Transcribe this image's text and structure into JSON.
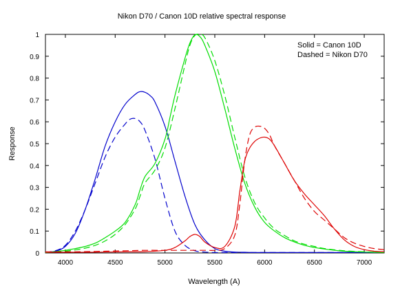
{
  "chart_data": {
    "type": "line",
    "title": "Nikon D70 / Canon 10D relative spectral response",
    "xlabel": "Wavelength (A)",
    "ylabel": "Response",
    "xlim": [
      3800,
      7200
    ],
    "ylim": [
      0,
      1
    ],
    "xticks": [
      4000,
      4500,
      5000,
      5500,
      6000,
      6500,
      7000
    ],
    "yticks": [
      0,
      0.1,
      0.2,
      0.3,
      0.4,
      0.5,
      0.6,
      0.7,
      0.8,
      0.9,
      1
    ],
    "grid": false,
    "legend_text": [
      "Solid = Canon 10D",
      "Dashed = Nikon D70"
    ],
    "legend_position": "top-right",
    "series": [
      {
        "camera": "Canon 10D",
        "channel": "blue",
        "color": "#0000cc",
        "style": "solid",
        "x": [
          3800,
          3900,
          4000,
          4100,
          4200,
          4300,
          4400,
          4500,
          4600,
          4700,
          4750,
          4800,
          4850,
          4900,
          5000,
          5100,
          5200,
          5300,
          5400,
          5500,
          5600,
          5700,
          5800,
          5900,
          6000,
          6100,
          6200,
          6400,
          6600,
          6800,
          7000,
          7200
        ],
        "y": [
          0.003,
          0.008,
          0.03,
          0.09,
          0.2,
          0.34,
          0.49,
          0.6,
          0.68,
          0.725,
          0.738,
          0.735,
          0.72,
          0.69,
          0.58,
          0.42,
          0.26,
          0.13,
          0.06,
          0.02,
          0.008,
          0.004,
          0.003,
          0.002,
          0.002,
          0.002,
          0.002,
          0.002,
          0.002,
          0.002,
          0.002,
          0.002
        ]
      },
      {
        "camera": "Nikon D70",
        "channel": "blue",
        "color": "#0000cc",
        "style": "dashed",
        "x": [
          3800,
          3900,
          4000,
          4100,
          4200,
          4300,
          4400,
          4500,
          4600,
          4650,
          4700,
          4750,
          4800,
          4900,
          5000,
          5100,
          5200,
          5300,
          5400,
          5500,
          5600,
          5800,
          6000,
          6200,
          6400,
          6600,
          6800,
          7000,
          7200
        ],
        "y": [
          0.003,
          0.01,
          0.035,
          0.1,
          0.2,
          0.32,
          0.44,
          0.53,
          0.59,
          0.612,
          0.615,
          0.6,
          0.56,
          0.43,
          0.25,
          0.1,
          0.035,
          0.01,
          0.004,
          0.002,
          0.002,
          0.002,
          0.002,
          0.002,
          0.002,
          0.002,
          0.002,
          0.002,
          0.002
        ]
      },
      {
        "camera": "Canon 10D",
        "channel": "green",
        "color": "#00dd00",
        "style": "solid",
        "x": [
          3800,
          3900,
          4000,
          4100,
          4200,
          4300,
          4400,
          4500,
          4600,
          4700,
          4750,
          4800,
          4900,
          5000,
          5050,
          5100,
          5200,
          5250,
          5300,
          5350,
          5400,
          5500,
          5600,
          5700,
          5800,
          5900,
          6000,
          6100,
          6200,
          6300,
          6400,
          6500,
          6600,
          6800,
          7000,
          7200
        ],
        "y": [
          0.003,
          0.006,
          0.012,
          0.02,
          0.03,
          0.045,
          0.07,
          0.1,
          0.14,
          0.22,
          0.29,
          0.35,
          0.41,
          0.52,
          0.62,
          0.72,
          0.89,
          0.96,
          0.998,
          0.99,
          0.95,
          0.83,
          0.66,
          0.48,
          0.32,
          0.21,
          0.14,
          0.1,
          0.07,
          0.05,
          0.035,
          0.025,
          0.018,
          0.008,
          0.004,
          0.002
        ]
      },
      {
        "camera": "Nikon D70",
        "channel": "green",
        "color": "#00dd00",
        "style": "dashed",
        "x": [
          3800,
          3900,
          4000,
          4100,
          4200,
          4300,
          4400,
          4500,
          4600,
          4700,
          4750,
          4800,
          4900,
          5000,
          5100,
          5200,
          5250,
          5300,
          5350,
          5400,
          5500,
          5600,
          5700,
          5800,
          5900,
          6000,
          6100,
          6200,
          6300,
          6400,
          6500,
          6600,
          6800,
          7000,
          7200
        ],
        "y": [
          0.002,
          0.004,
          0.008,
          0.014,
          0.022,
          0.035,
          0.055,
          0.085,
          0.13,
          0.2,
          0.26,
          0.32,
          0.38,
          0.48,
          0.66,
          0.86,
          0.95,
          0.995,
          1.0,
          0.985,
          0.88,
          0.72,
          0.53,
          0.35,
          0.23,
          0.16,
          0.11,
          0.08,
          0.055,
          0.04,
          0.03,
          0.02,
          0.01,
          0.005,
          0.002
        ]
      },
      {
        "camera": "Canon 10D",
        "channel": "red",
        "color": "#dd0000",
        "style": "solid",
        "x": [
          3800,
          4000,
          4200,
          4400,
          4600,
          4800,
          5000,
          5100,
          5200,
          5250,
          5300,
          5350,
          5400,
          5500,
          5600,
          5700,
          5750,
          5800,
          5850,
          5900,
          5950,
          6000,
          6050,
          6100,
          6200,
          6300,
          6400,
          6500,
          6600,
          6700,
          6800,
          6900,
          7000,
          7100,
          7200
        ],
        "y": [
          0.003,
          0.003,
          0.003,
          0.004,
          0.005,
          0.006,
          0.012,
          0.025,
          0.055,
          0.075,
          0.085,
          0.075,
          0.05,
          0.025,
          0.03,
          0.12,
          0.28,
          0.42,
          0.48,
          0.51,
          0.525,
          0.53,
          0.52,
          0.49,
          0.41,
          0.33,
          0.27,
          0.22,
          0.17,
          0.11,
          0.06,
          0.03,
          0.015,
          0.008,
          0.005
        ]
      },
      {
        "camera": "Nikon D70",
        "channel": "red",
        "color": "#dd0000",
        "style": "dashed",
        "x": [
          3800,
          4000,
          4200,
          4400,
          4600,
          4800,
          5000,
          5200,
          5400,
          5500,
          5600,
          5700,
          5750,
          5800,
          5850,
          5900,
          5950,
          6000,
          6050,
          6100,
          6200,
          6300,
          6400,
          6500,
          6600,
          6700,
          6800,
          6900,
          7000,
          7100,
          7200
        ],
        "y": [
          0.005,
          0.005,
          0.006,
          0.008,
          0.01,
          0.012,
          0.012,
          0.012,
          0.012,
          0.012,
          0.02,
          0.08,
          0.22,
          0.42,
          0.54,
          0.575,
          0.58,
          0.57,
          0.54,
          0.49,
          0.41,
          0.33,
          0.25,
          0.19,
          0.15,
          0.11,
          0.07,
          0.045,
          0.03,
          0.02,
          0.015
        ]
      }
    ]
  }
}
